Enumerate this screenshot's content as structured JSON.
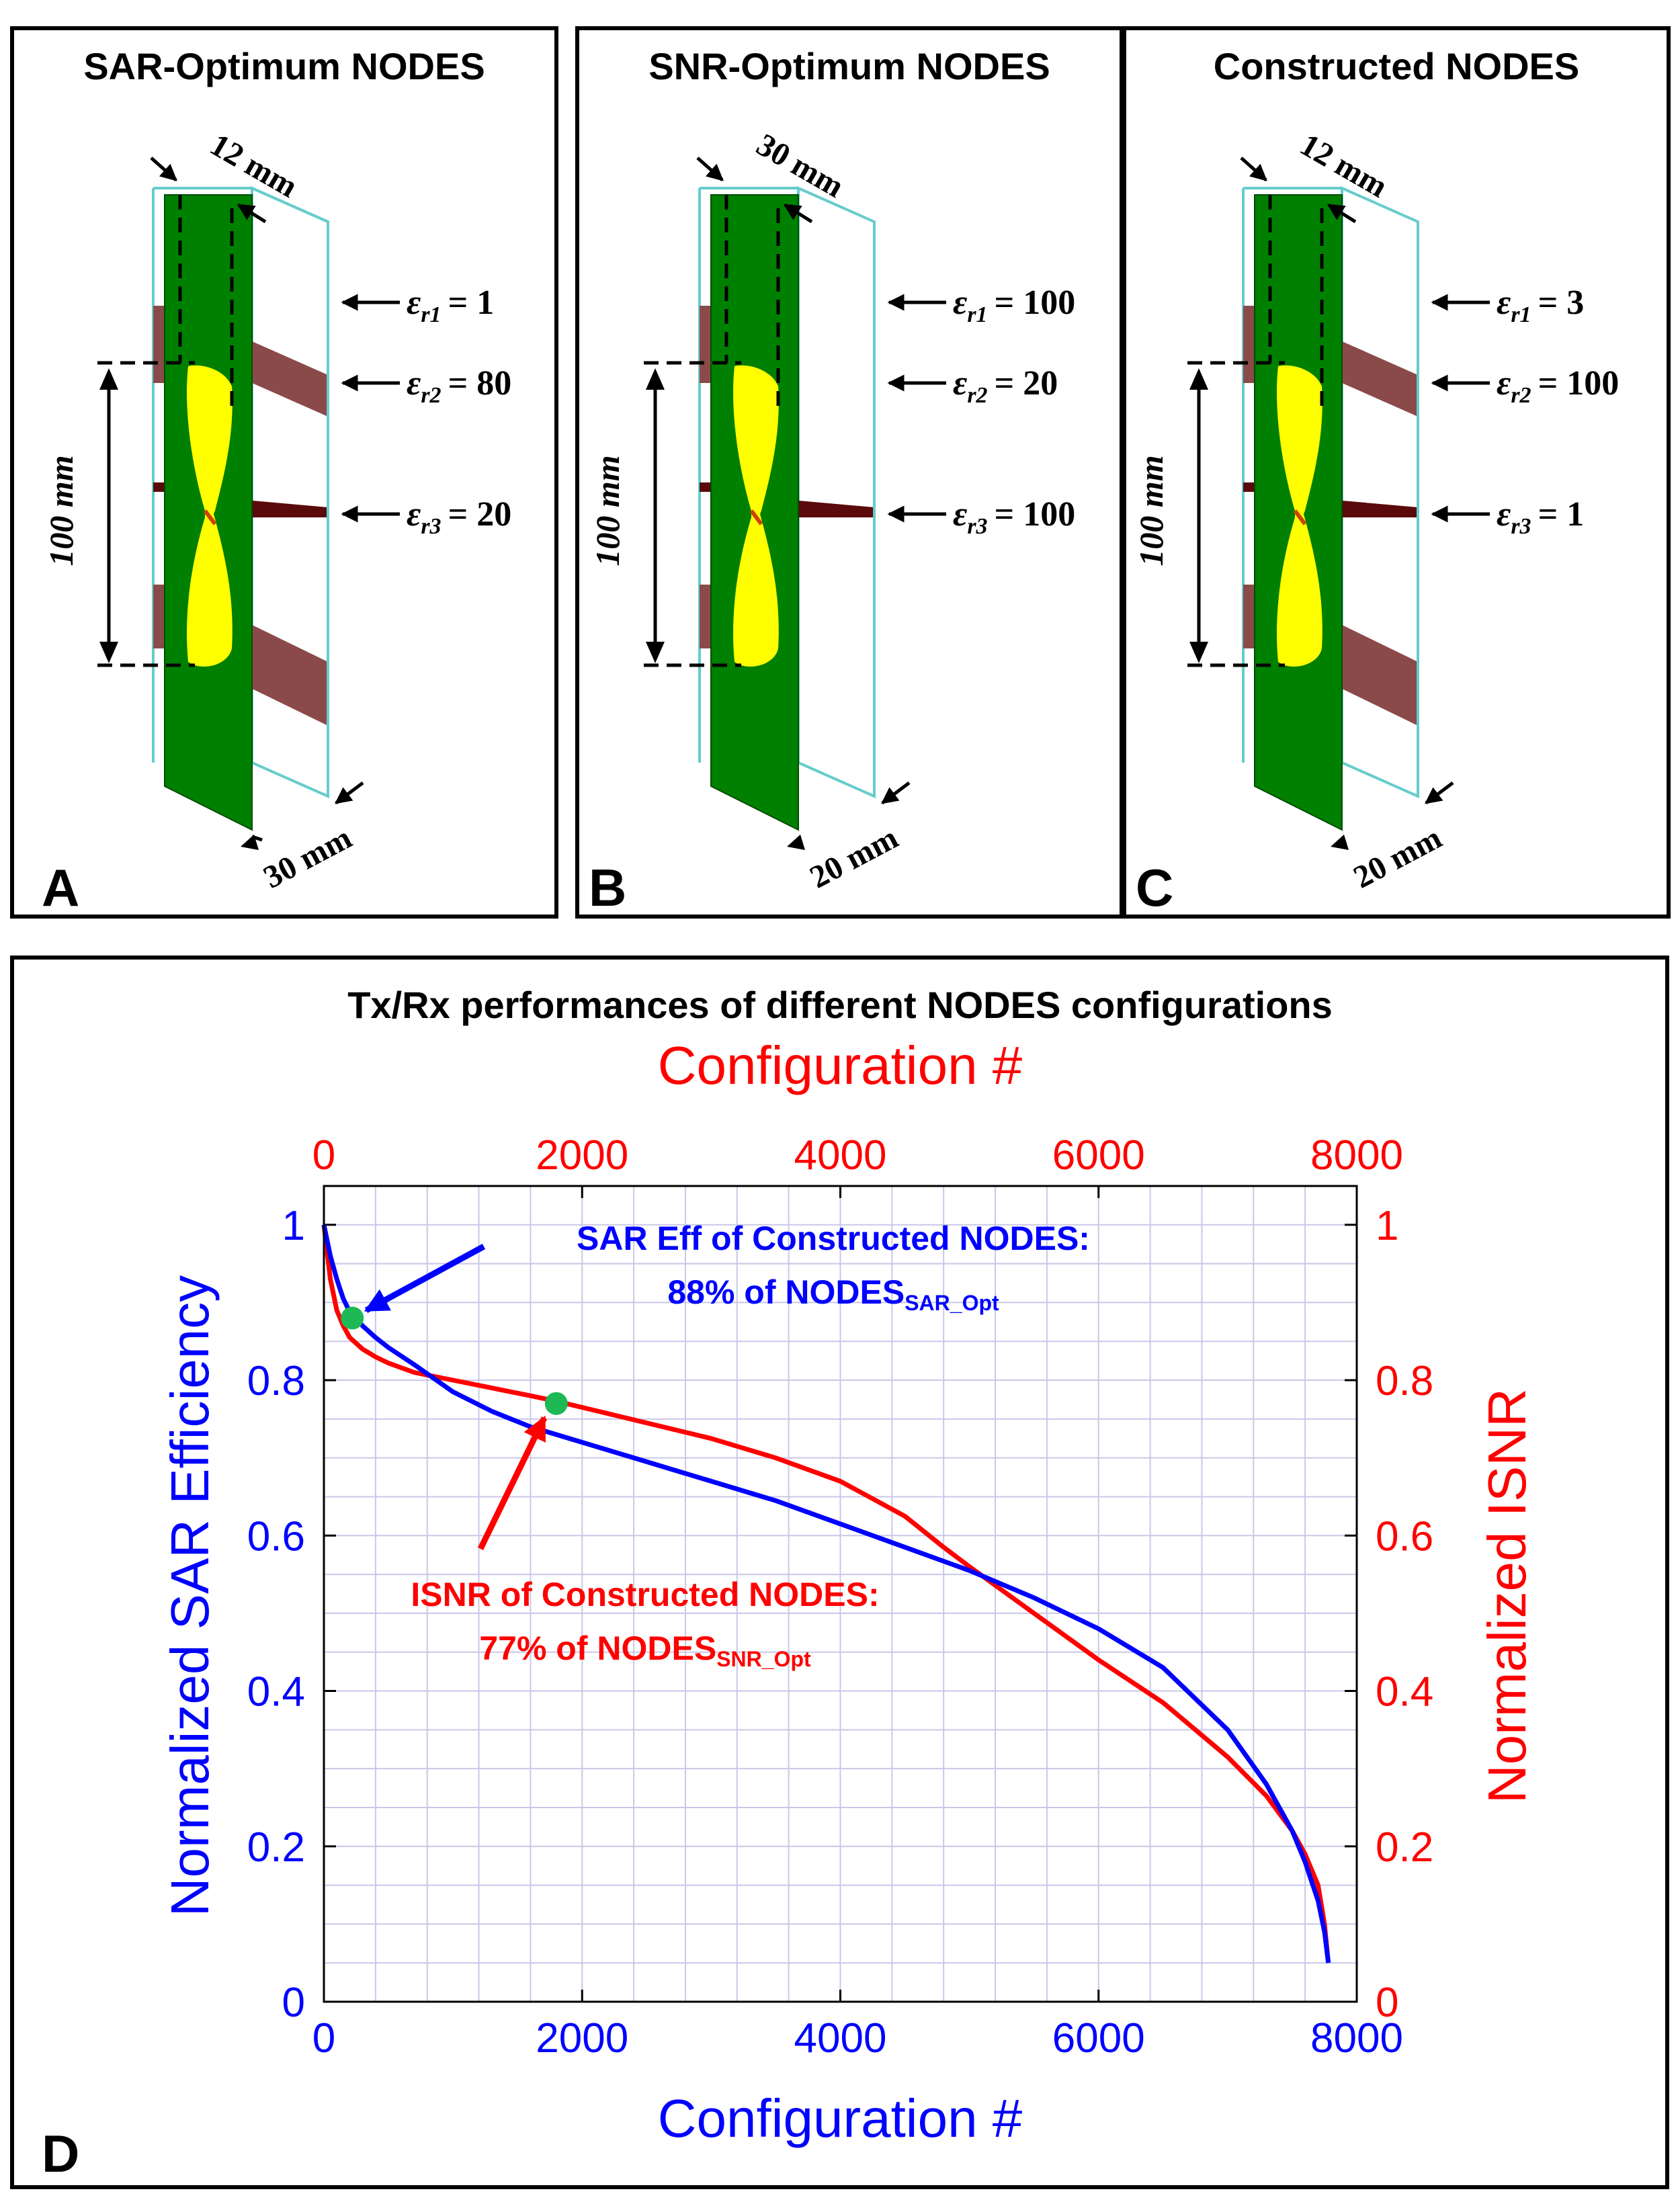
{
  "panels": [
    {
      "id": "A",
      "letter": "A",
      "title": "SAR-Optimum NODES",
      "top_dim": "12 mm",
      "depth_dim": "30 mm",
      "height_dim": "100 mm",
      "eps_labels": [
        "ε",
        "ε",
        "ε"
      ],
      "eps_subs": [
        "r1",
        "r2",
        "r3"
      ],
      "eps_values": [
        "= 1",
        "= 80",
        "= 20"
      ]
    },
    {
      "id": "B",
      "letter": "B",
      "title": "SNR-Optimum NODES",
      "top_dim": "30 mm",
      "depth_dim": "20 mm",
      "height_dim": "100 mm",
      "eps_labels": [
        "ε",
        "ε",
        "ε"
      ],
      "eps_subs": [
        "r1",
        "r2",
        "r3"
      ],
      "eps_values": [
        "= 100",
        "= 20",
        "= 100"
      ]
    },
    {
      "id": "C",
      "letter": "C",
      "title": "Constructed NODES",
      "top_dim": "12 mm",
      "depth_dim": "20 mm",
      "height_dim": "100 mm",
      "eps_labels": [
        "ε",
        "ε",
        "ε"
      ],
      "eps_subs": [
        "r1",
        "r2",
        "r3"
      ],
      "eps_values": [
        "= 3",
        "= 100",
        "= 1"
      ]
    }
  ],
  "colors": {
    "substrate": "#008000",
    "antenna": "#ffff00",
    "dielectric": "#8b4a4a",
    "thin_layer": "#5a0a0a",
    "box_edge": "#66cccc",
    "sar_line": "#0000ff",
    "isnr_line": "#ff0000",
    "marker": "#1db954",
    "grid": "#c8c8e8"
  },
  "chart_data": {
    "type": "line",
    "panel_letter": "D",
    "title": "Tx/Rx performances of different NODES configurations",
    "xlabel_bottom": "Configuration #",
    "xlabel_top": "Configuration #",
    "ylabel_left": "Normalized SAR Efficiency",
    "ylabel_right": "Normalized ISNR",
    "xlim": [
      0,
      8000
    ],
    "ylim": [
      0,
      1.05
    ],
    "x_ticks": [
      "0",
      "2000",
      "4000",
      "6000",
      "8000"
    ],
    "y_ticks": [
      "0",
      "0.2",
      "0.4",
      "0.6",
      "0.8",
      "1"
    ],
    "grid": true,
    "series": [
      {
        "name": "Normalized SAR Efficiency",
        "axis": "left",
        "color": "#0000ff",
        "x": [
          0,
          50,
          100,
          150,
          200,
          300,
          400,
          500,
          700,
          1000,
          1300,
          1600,
          2000,
          2500,
          3000,
          3500,
          4000,
          4500,
          5000,
          5500,
          6000,
          6500,
          7000,
          7300,
          7500,
          7600,
          7700,
          7750,
          7780
        ],
        "y": [
          1.0,
          0.96,
          0.93,
          0.905,
          0.888,
          0.87,
          0.855,
          0.842,
          0.82,
          0.785,
          0.76,
          0.74,
          0.72,
          0.695,
          0.67,
          0.645,
          0.615,
          0.585,
          0.555,
          0.52,
          0.48,
          0.43,
          0.35,
          0.28,
          0.22,
          0.18,
          0.13,
          0.09,
          0.05
        ]
      },
      {
        "name": "Normalized ISNR",
        "axis": "right",
        "color": "#ff0000",
        "x": [
          0,
          50,
          100,
          150,
          200,
          300,
          400,
          500,
          700,
          1000,
          1300,
          1600,
          1800,
          2000,
          2500,
          3000,
          3500,
          4000,
          4500,
          4800,
          5000,
          5500,
          6000,
          6500,
          7000,
          7300,
          7500,
          7600,
          7700,
          7750,
          7780
        ],
        "y": [
          1.0,
          0.93,
          0.89,
          0.87,
          0.855,
          0.84,
          0.83,
          0.822,
          0.81,
          0.8,
          0.79,
          0.78,
          0.773,
          0.765,
          0.745,
          0.725,
          0.7,
          0.67,
          0.625,
          0.585,
          0.56,
          0.5,
          0.44,
          0.385,
          0.315,
          0.265,
          0.22,
          0.19,
          0.15,
          0.1,
          0.05
        ]
      }
    ],
    "markers": [
      {
        "name": "SAR eff marker",
        "x": 220,
        "y": 0.88
      },
      {
        "name": "ISNR marker",
        "x": 1800,
        "y": 0.77
      }
    ],
    "annotations": [
      {
        "name": "sar-annotation",
        "color": "#0000ff",
        "line1": "SAR Eff of Constructed NODES:",
        "line2_main": "88% of NODES",
        "line2_sub": "SAR_Opt"
      },
      {
        "name": "isnr-annotation",
        "color": "#ff0000",
        "line1": "ISNR of Constructed NODES:",
        "line2_main": "77% of NODES",
        "line2_sub": "SNR_Opt"
      }
    ]
  }
}
